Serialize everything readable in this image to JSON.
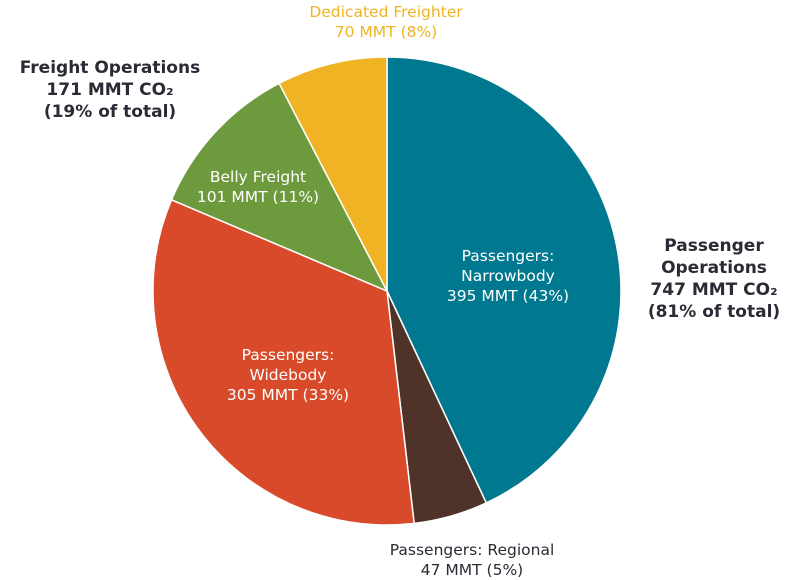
{
  "chart_data": {
    "type": "pie",
    "categories": [
      "Passengers: Narrowbody",
      "Passengers: Regional",
      "Passengers: Widebody",
      "Belly Freight",
      "Dedicated Freighter"
    ],
    "values": [
      395,
      47,
      305,
      101,
      70
    ],
    "value_labels": [
      "395 MMT (43%)",
      "47 MMT (5%)",
      "305 MMT (33%)",
      "101 MMT (11%)",
      "70 MMT (8%)"
    ],
    "colors": [
      "#00788f",
      "#4f3328",
      "#d84a29",
      "#6e9a3e",
      "#f0b323"
    ],
    "annotations": [
      {
        "title": "Freight Operations",
        "value": "171 MMT CO₂",
        "share": "(19% of total)"
      },
      {
        "title": "Passenger Operations",
        "value": "747 MMT CO₂",
        "share": "(81% of total)"
      }
    ]
  }
}
